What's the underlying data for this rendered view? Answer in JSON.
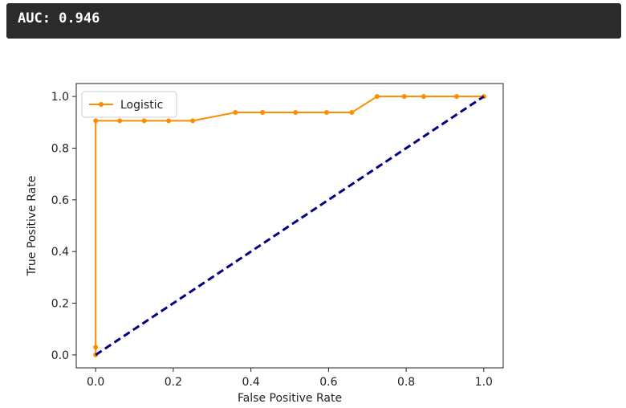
{
  "output": {
    "text": "AUC: 0.946"
  },
  "chart_data": {
    "type": "line",
    "xlabel": "False Positive Rate",
    "ylabel": "True Positive Rate",
    "xlim": [
      -0.05,
      1.05
    ],
    "ylim": [
      -0.05,
      1.05
    ],
    "xticks": [
      0.0,
      0.2,
      0.4,
      0.6,
      0.8,
      1.0
    ],
    "yticks": [
      0.0,
      0.2,
      0.4,
      0.6,
      0.8,
      1.0
    ],
    "tick_labels_x": [
      "0.0",
      "0.2",
      "0.4",
      "0.6",
      "0.8",
      "1.0"
    ],
    "tick_labels_y": [
      "0.0",
      "0.2",
      "0.4",
      "0.6",
      "0.8",
      "1.0"
    ],
    "grid": false,
    "legend": {
      "position": "top-left",
      "entries": [
        "Logistic"
      ]
    },
    "series": [
      {
        "name": "Logistic",
        "color": "#ff8c00",
        "marker": "dot",
        "x": [
          0.0,
          0.0,
          0.0,
          0.062,
          0.125,
          0.188,
          0.25,
          0.36,
          0.43,
          0.515,
          0.595,
          0.66,
          0.725,
          0.795,
          0.845,
          0.93,
          1.0
        ],
        "y": [
          0.0,
          0.03,
          0.906,
          0.906,
          0.906,
          0.906,
          0.906,
          0.938,
          0.938,
          0.938,
          0.938,
          0.938,
          1.0,
          1.0,
          1.0,
          1.0,
          1.0
        ]
      },
      {
        "name": "",
        "color": "#000080",
        "style": "dashed",
        "x": [
          0.0,
          1.0
        ],
        "y": [
          0.0,
          1.0
        ]
      }
    ]
  }
}
